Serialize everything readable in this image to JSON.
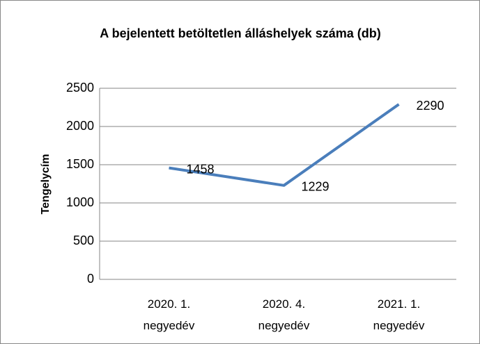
{
  "chart_data": {
    "type": "line",
    "title": "A bejelentett betöltetlen álláshelyek száma (db)",
    "y_label": "Tengelycím",
    "categories": [
      "2020. 1. negyedév",
      "2020. 4. negyedév",
      "2021. 1. negyedév"
    ],
    "values": [
      1458,
      1229,
      2290
    ],
    "color": "#4a7ebb",
    "ylim": [
      0,
      2500
    ],
    "yticks": [
      0,
      500,
      1000,
      1500,
      2000,
      2500
    ],
    "grid": true
  }
}
